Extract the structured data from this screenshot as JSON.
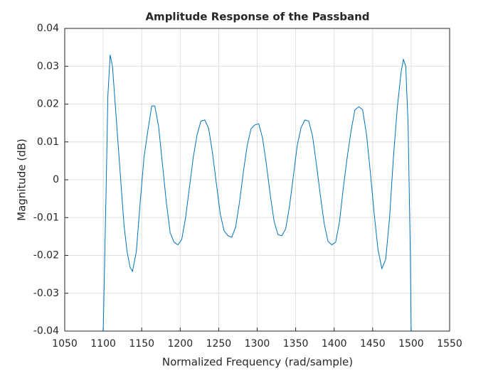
{
  "chart_data": {
    "type": "line",
    "title": "Amplitude Response of the Passband",
    "xlabel": "Normalized Frequency (rad/sample)",
    "ylabel": "Magnitude (dB)",
    "x": [
      1100,
      1104,
      1106,
      1109,
      1112,
      1117,
      1122,
      1127,
      1131,
      1135,
      1138,
      1143,
      1148,
      1153,
      1158,
      1163,
      1167,
      1172,
      1177,
      1182,
      1187,
      1192,
      1197,
      1202,
      1207,
      1212,
      1217,
      1222,
      1227,
      1232,
      1237,
      1242,
      1247,
      1252,
      1257,
      1262,
      1267,
      1272,
      1277,
      1282,
      1287,
      1292,
      1297,
      1302,
      1307,
      1312,
      1317,
      1322,
      1327,
      1332,
      1337,
      1342,
      1347,
      1352,
      1357,
      1362,
      1367,
      1372,
      1377,
      1382,
      1387,
      1392,
      1397,
      1402,
      1407,
      1412,
      1417,
      1422,
      1427,
      1432,
      1437,
      1442,
      1447,
      1452,
      1457,
      1462,
      1467,
      1472,
      1477,
      1482,
      1487,
      1490,
      1493,
      1496,
      1499,
      1500
    ],
    "series": [
      {
        "color": "#0072bd",
        "values": [
          -0.04,
          0.0,
          0.022,
          0.033,
          0.03,
          0.016,
          0.002,
          -0.012,
          -0.019,
          -0.0232,
          -0.0242,
          -0.019,
          -0.006,
          0.006,
          0.013,
          0.0195,
          0.0195,
          0.014,
          0.004,
          -0.006,
          -0.014,
          -0.0165,
          -0.0172,
          -0.0158,
          -0.01,
          -0.002,
          0.006,
          0.012,
          0.0155,
          0.0158,
          0.0135,
          0.007,
          -0.001,
          -0.009,
          -0.0135,
          -0.0148,
          -0.0152,
          -0.0125,
          -0.006,
          0.002,
          0.009,
          0.0135,
          0.0145,
          0.0148,
          0.011,
          0.004,
          -0.004,
          -0.011,
          -0.0145,
          -0.0148,
          -0.013,
          -0.007,
          0.001,
          0.009,
          0.0138,
          0.0158,
          0.0155,
          0.0115,
          0.004,
          -0.004,
          -0.0115,
          -0.0163,
          -0.0172,
          -0.0165,
          -0.011,
          -0.002,
          0.006,
          0.013,
          0.0185,
          0.0193,
          0.0185,
          0.012,
          0.002,
          -0.009,
          -0.0185,
          -0.0235,
          -0.021,
          -0.01,
          0.006,
          0.019,
          0.0285,
          0.0318,
          0.03,
          0.015,
          -0.02,
          -0.04
        ]
      }
    ],
    "xlim": [
      1050,
      1550
    ],
    "xticks": [
      1050,
      1100,
      1150,
      1200,
      1250,
      1300,
      1350,
      1400,
      1450,
      1500,
      1550
    ],
    "ylim": [
      -0.04,
      0.04
    ],
    "yticks": [
      -0.04,
      -0.03,
      -0.02,
      -0.01,
      0,
      0.01,
      0.02,
      0.03,
      0.04
    ],
    "grid": true
  }
}
